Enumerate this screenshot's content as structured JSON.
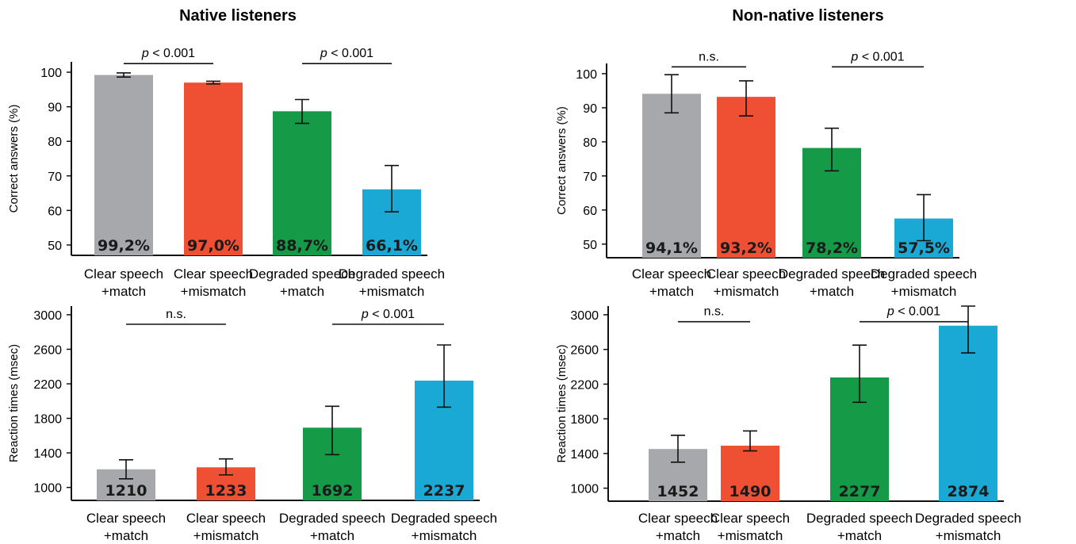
{
  "titles": [
    "Native listeners",
    "Non-native listeners"
  ],
  "colors": [
    "#a6a8ab",
    "#ef5033",
    "#159a48",
    "#1aa8d4"
  ],
  "chart_data": [
    {
      "type": "bar",
      "group": "Native listeners",
      "ylabel": "Correct answers (%)",
      "ylim": [
        47,
        103
      ],
      "yticks": [
        50,
        60,
        70,
        80,
        90,
        100
      ],
      "categories": [
        [
          "Clear speech",
          "+match"
        ],
        [
          "Clear speech",
          "+mismatch"
        ],
        [
          "Degraded speech",
          "+match"
        ],
        [
          "Degraded speech",
          "+mismatch"
        ]
      ],
      "values": [
        99.2,
        97.0,
        88.7,
        66.1
      ],
      "labels": [
        "99,2%",
        "97,0%",
        "88,7%",
        "66,1%"
      ],
      "error": [
        [
          98.6,
          99.8
        ],
        [
          96.6,
          97.4
        ],
        [
          85.2,
          92.1
        ],
        [
          59.6,
          73.0
        ]
      ],
      "comparisons": [
        {
          "bars": [
            0,
            1
          ],
          "text": "< 0.001",
          "p": true,
          "y": 102.5
        },
        {
          "bars": [
            2,
            3
          ],
          "text": "< 0.001",
          "p": true,
          "y": 102.5
        }
      ]
    },
    {
      "type": "bar",
      "group": "Non-native listeners",
      "ylabel": "Correct answers (%)",
      "ylim": [
        46,
        103
      ],
      "yticks": [
        50,
        60,
        70,
        80,
        90,
        100
      ],
      "categories": [
        [
          "Clear speech",
          "+match"
        ],
        [
          "Clear speech",
          "+mismatch"
        ],
        [
          "Degraded speech",
          "+match"
        ],
        [
          "Degraded speech",
          "+mismatch"
        ]
      ],
      "values": [
        94.1,
        93.2,
        78.2,
        57.5
      ],
      "labels": [
        "94,1%",
        "93,2%",
        "78,2%",
        "57,5%"
      ],
      "error": [
        [
          88.5,
          99.7
        ],
        [
          87.6,
          97.9
        ],
        [
          71.5,
          84.0
        ],
        [
          51.0,
          64.5
        ]
      ],
      "comparisons": [
        {
          "bars": [
            0,
            1
          ],
          "text": "n.s.",
          "p": false,
          "y": 102.0
        },
        {
          "bars": [
            2,
            3
          ],
          "text": "< 0.001",
          "p": true,
          "y": 102.0
        }
      ]
    },
    {
      "type": "bar",
      "group": "Native listeners",
      "ylabel": "Reaction times (msec)",
      "ylim": [
        850,
        3100
      ],
      "yticks": [
        1000,
        1400,
        1800,
        2200,
        2600,
        3000
      ],
      "categories": [
        [
          "Clear speech",
          "+match"
        ],
        [
          "Clear speech",
          "+mismatch"
        ],
        [
          "Degraded speech",
          "+match"
        ],
        [
          "Degraded speech",
          "+mismatch"
        ]
      ],
      "values": [
        1210,
        1233,
        1692,
        2237
      ],
      "labels": [
        "1210",
        "1233",
        "1692",
        "2237"
      ],
      "error": [
        [
          1100,
          1320
        ],
        [
          1145,
          1330
        ],
        [
          1380,
          1940
        ],
        [
          1930,
          2650
        ]
      ],
      "comparisons": [
        {
          "bars": [
            0,
            1
          ],
          "text": "n.s.",
          "p": false,
          "y": 2890
        },
        {
          "bars": [
            2,
            3
          ],
          "text": "< 0.001",
          "p": true,
          "y": 2890
        }
      ]
    },
    {
      "type": "bar",
      "group": "Non-native listeners",
      "ylabel": "Reaction times (msec)",
      "ylim": [
        850,
        3100
      ],
      "yticks": [
        1000,
        1400,
        1800,
        2200,
        2600,
        3000
      ],
      "categories": [
        [
          "Clear speech",
          "+match"
        ],
        [
          "Clear speech",
          "+mismatch"
        ],
        [
          "Degraded speech",
          "+match"
        ],
        [
          "Degraded speech",
          "+mismatch"
        ]
      ],
      "values": [
        1452,
        1490,
        2277,
        2874
      ],
      "labels": [
        "1452",
        "1490",
        "2277",
        "2874"
      ],
      "error": [
        [
          1300,
          1610
        ],
        [
          1430,
          1660
        ],
        [
          1990,
          2650
        ],
        [
          2560,
          3100
        ]
      ],
      "comparisons": [
        {
          "bars": [
            0,
            1
          ],
          "text": "n.s.",
          "p": false,
          "y": 2920
        },
        {
          "bars": [
            2,
            3
          ],
          "text": "< 0.001",
          "p": true,
          "y": 2920
        }
      ]
    }
  ]
}
